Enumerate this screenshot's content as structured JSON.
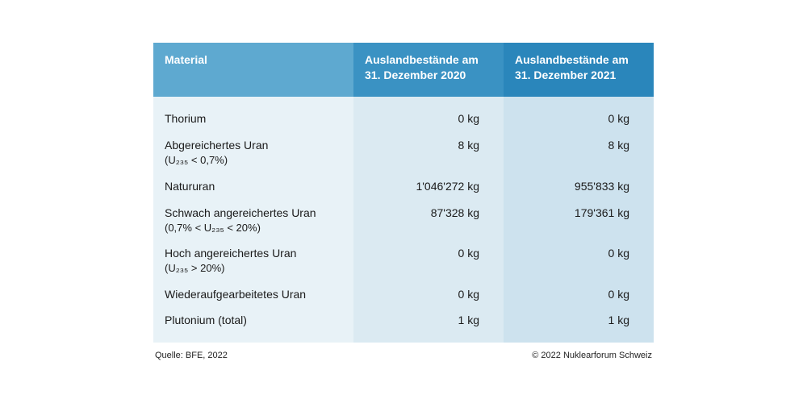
{
  "table": {
    "type": "table",
    "background_color": "#ffffff",
    "text_color": "#1a1a1a",
    "header_text_color": "#ffffff",
    "font_size_body": 14,
    "font_size_footer": 11,
    "columns": [
      {
        "label": "Material",
        "width_pct": 40,
        "bg": "#5ea9d0",
        "body_bg": "#e8f2f7",
        "align": "left"
      },
      {
        "label": "Auslandbestände am 31. Dezember 2020",
        "width_pct": 30,
        "bg": "#3a92c3",
        "body_bg": "#dbeaf2",
        "align": "right"
      },
      {
        "label": "Auslandbestände am 31. Dezember 2021",
        "width_pct": 30,
        "bg": "#2a86bb",
        "body_bg": "#cde2ee",
        "align": "right"
      }
    ],
    "rows": [
      {
        "material": "Thorium",
        "sub": "",
        "v2020": "0 kg",
        "v2021": "0 kg"
      },
      {
        "material": "Abgereichertes Uran",
        "sub": "(U₂₃₅ < 0,7%)",
        "v2020": "8 kg",
        "v2021": "8 kg"
      },
      {
        "material": "Natururan",
        "sub": "",
        "v2020": "1'046'272 kg",
        "v2021": "955'833 kg"
      },
      {
        "material": "Schwach angereichertes Uran",
        "sub": "(0,7% < U₂₃₅ < 20%)",
        "v2020": "87'328 kg",
        "v2021": "179'361 kg"
      },
      {
        "material": "Hoch angereichertes Uran",
        "sub": "(U₂₃₅ > 20%)",
        "v2020": "0 kg",
        "v2021": "0 kg"
      },
      {
        "material": "Wiederaufgearbeitetes Uran",
        "sub": "",
        "v2020": "0 kg",
        "v2021": "0 kg"
      },
      {
        "material": "Plutonium (total)",
        "sub": "",
        "v2020": "1 kg",
        "v2021": "1 kg"
      }
    ]
  },
  "footer": {
    "source": "Quelle: BFE, 2022",
    "copyright": "© 2022 Nuklearforum Schweiz"
  }
}
